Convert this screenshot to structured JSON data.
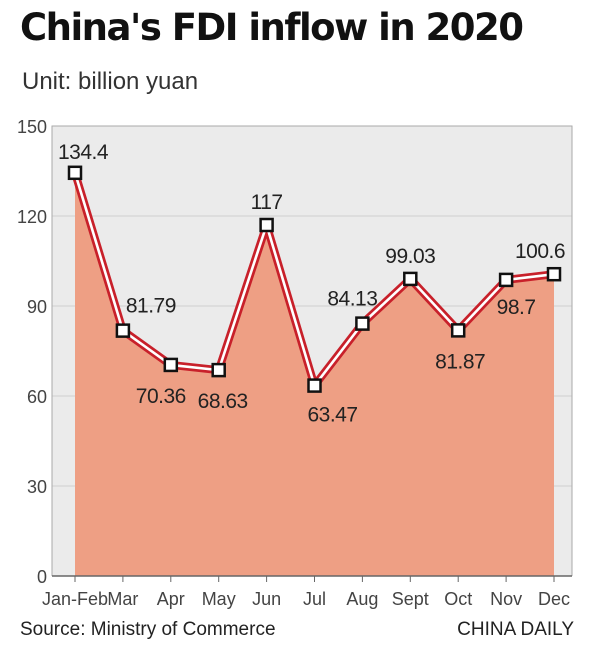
{
  "chart_data": {
    "type": "area",
    "title": "China's FDI inflow in 2020",
    "subtitle": "Unit: billion yuan",
    "categories": [
      "Jan-Feb",
      "Mar",
      "Apr",
      "May",
      "Jun",
      "Jul",
      "Aug",
      "Sept",
      "Oct",
      "Nov",
      "Dec"
    ],
    "values": [
      134.4,
      81.79,
      70.36,
      68.63,
      117,
      63.47,
      84.13,
      99.03,
      81.87,
      98.7,
      100.6
    ],
    "data_labels": [
      "134.4",
      "81.79",
      "70.36",
      "68.63",
      "117",
      "63.47",
      "84.13",
      "99.03",
      "81.87",
      "98.7",
      "100.6"
    ],
    "ylim": [
      0,
      150
    ],
    "yticks": [
      0,
      30,
      60,
      90,
      120,
      150
    ],
    "xlabel": "",
    "ylabel": "",
    "grid": true,
    "colors": {
      "fill": "#ee9f84",
      "line": "#c8202a",
      "plot_background": "#ebebeb",
      "grid": "#cfcfcf"
    }
  },
  "footer": {
    "source": "Source: Ministry of Commerce",
    "credit": "CHINA DAILY"
  }
}
